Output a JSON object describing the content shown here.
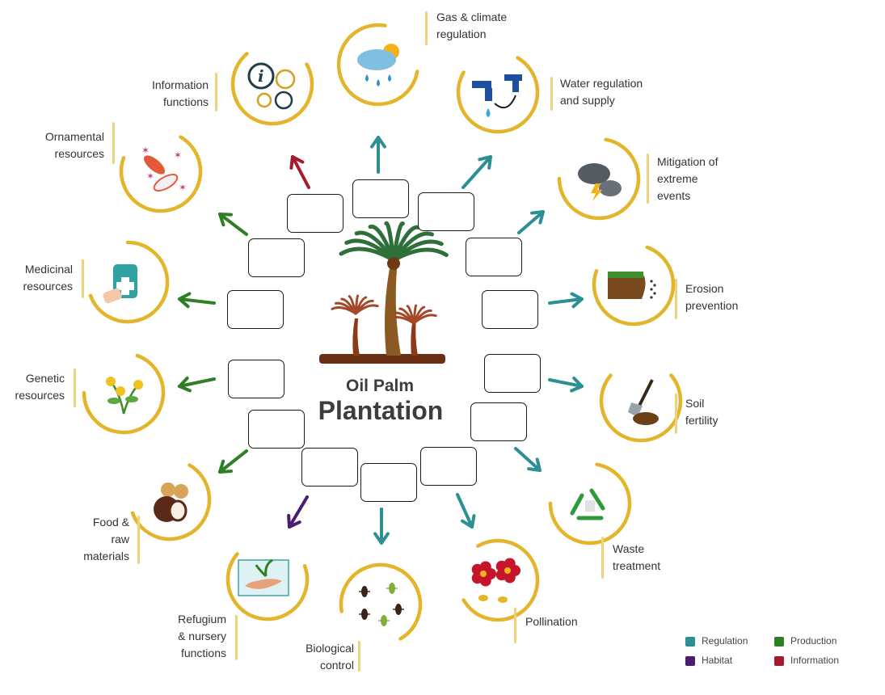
{
  "title": {
    "line1": "Oil Palm",
    "line2": "Plantation"
  },
  "colors": {
    "regulation": "#2c8f93",
    "production": "#2f7f27",
    "habitat": "#4b1d6e",
    "information": "#a31b2c",
    "ring": "#e3b52b"
  },
  "services": [
    {
      "id": "gas",
      "label": "Gas & climate\nregulation",
      "category": "regulation",
      "icon": "cloud-sun-rain-icon"
    },
    {
      "id": "water",
      "label": "Water regulation\nand supply",
      "category": "regulation",
      "icon": "water-tap-icon"
    },
    {
      "id": "extreme",
      "label": "Mitigation of\nextreme\nevents",
      "category": "regulation",
      "icon": "storm-cloud-icon"
    },
    {
      "id": "erosion",
      "label": "Erosion\nprevention",
      "category": "regulation",
      "icon": "cliff-erosion-icon"
    },
    {
      "id": "soil",
      "label": "Soil\nfertility",
      "category": "regulation",
      "icon": "shovel-soil-icon"
    },
    {
      "id": "waste",
      "label": "Waste\ntreatment",
      "category": "regulation",
      "icon": "recycle-icon"
    },
    {
      "id": "pollination",
      "label": "Pollination",
      "category": "regulation",
      "icon": "flower-bee-icon"
    },
    {
      "id": "bio",
      "label": "Biological\ncontrol",
      "category": "regulation",
      "icon": "insects-icon"
    },
    {
      "id": "refugium",
      "label": "Refugium\n& nursery\nfunctions",
      "category": "habitat",
      "icon": "seedling-hand-icon"
    },
    {
      "id": "food",
      "label": "Food &\nraw\nmaterials",
      "category": "production",
      "icon": "coconut-icon"
    },
    {
      "id": "genetic",
      "label": "Genetic\nresources",
      "category": "production",
      "icon": "herb-flower-icon"
    },
    {
      "id": "medicinal",
      "label": "Medicinal\nresources",
      "category": "production",
      "icon": "medicine-icon"
    },
    {
      "id": "ornamental",
      "label": "Ornamental\nresources",
      "category": "production",
      "icon": "koi-fish-icon"
    },
    {
      "id": "information",
      "label": "Information\nfunctions",
      "category": "information",
      "icon": "info-bubbles-icon"
    }
  ],
  "legend": [
    {
      "label": "Regulation",
      "color": "#2c8f93"
    },
    {
      "label": "Production",
      "color": "#2f7f27"
    },
    {
      "label": "Habitat",
      "color": "#4b1d6e"
    },
    {
      "label": "Information",
      "color": "#a31b2c"
    }
  ]
}
